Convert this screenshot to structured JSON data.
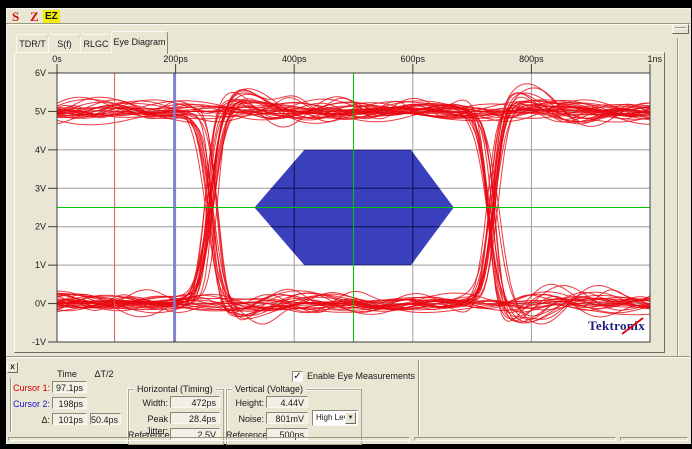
{
  "toolbar": {
    "icons": [
      {
        "label": "S"
      },
      {
        "label": "Z"
      },
      {
        "label": "EZ"
      }
    ]
  },
  "tabs": [
    {
      "label": "TDR/T",
      "active": false
    },
    {
      "label": "S(f)",
      "active": false
    },
    {
      "label": "RLGC",
      "active": false
    },
    {
      "label": "Eye Diagram",
      "active": true
    }
  ],
  "plot": {
    "x_axis": {
      "labels": [
        "0s",
        "200ps",
        "400ps",
        "600ps",
        "800ps",
        "1ns"
      ],
      "ticks_ps": [
        0,
        200,
        400,
        600,
        800,
        1000
      ],
      "range_ps": [
        0,
        1000
      ]
    },
    "y_axis": {
      "labels": [
        "6V",
        "5V",
        "4V",
        "3V",
        "2V",
        "1V",
        "0V",
        "-1V"
      ],
      "ticks_v": [
        6,
        5,
        4,
        3,
        2,
        1,
        0,
        -1
      ],
      "range_v": [
        -1,
        6
      ]
    },
    "grid": {
      "x_ps": [
        200,
        400,
        600,
        800
      ],
      "y_v": [
        0,
        1,
        2,
        3,
        4,
        5
      ],
      "color_outside": "#9c9c9c",
      "color_inside_mask": "#0d0d52"
    },
    "reference": {
      "horizontal_v": 2.5,
      "vertical_ps": 500,
      "color": "#00c400"
    },
    "cursors": {
      "cursor1_ps": 97.1,
      "cursor1_color": "#e05555",
      "cursor2_ps": 198,
      "cursor2_color": "#7b7ed2"
    },
    "mask": {
      "vertices_ps_v": [
        [
          333,
          2.5
        ],
        [
          417,
          4
        ],
        [
          597,
          4
        ],
        [
          669,
          2.5
        ],
        [
          597,
          1
        ],
        [
          417,
          1
        ]
      ],
      "color": "#3a40bc"
    },
    "eye": {
      "crossings_ps": [
        262,
        734
      ],
      "high_v": 5,
      "low_v": 0,
      "trace_color": "#e90711",
      "trace_count": 58,
      "seed": 20
    },
    "logo": {
      "text": "Tektronix",
      "color": "#1b1b80",
      "swoosh_color": "#dd0914"
    }
  },
  "measurements": {
    "close_label": "x",
    "col_headers": [
      "Time",
      "ΔT/2"
    ],
    "cursor1": {
      "label": "Cursor 1:",
      "value": "97.1ps",
      "label_color": "#d40000"
    },
    "cursor2": {
      "label": "Cursor 2:",
      "value": "198ps",
      "label_color": "#1414d4"
    },
    "delta": {
      "label": "Δ:",
      "value1": "101ps",
      "value2": "50.4ps"
    },
    "enable_checkbox": {
      "checked": true,
      "label": "Enable Eye Measurements",
      "check_glyph": "✓"
    },
    "horizontal_group": {
      "title": "Horizontal (Timing)",
      "rows": [
        {
          "label": "Width:",
          "value": "472ps"
        },
        {
          "label": "Peak Jitter:",
          "value": "28.4ps"
        },
        {
          "label": "Reference:",
          "value": "2.5V"
        }
      ]
    },
    "vertical_group": {
      "title": "Vertical (Voltage)",
      "rows": [
        {
          "label": "Height:",
          "value": "4.44V"
        },
        {
          "label": "Noise:",
          "value": "801mV"
        },
        {
          "label": "Reference:",
          "value": "500ps"
        }
      ],
      "dropdown": {
        "value": "High Level",
        "arrow": "▼"
      }
    }
  }
}
